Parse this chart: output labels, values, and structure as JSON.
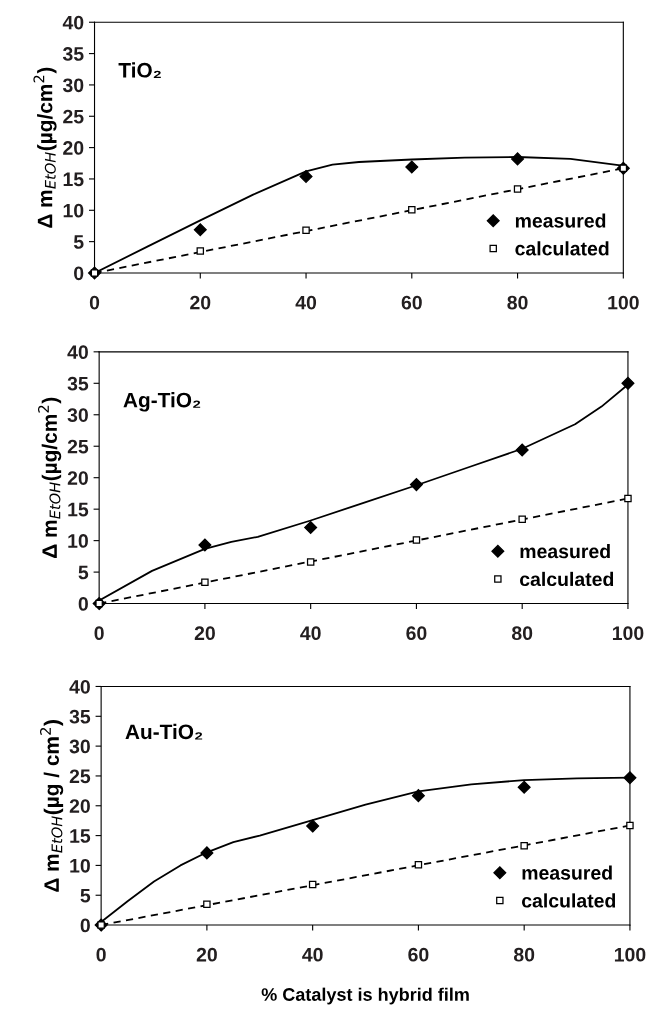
{
  "chart_data": [
    {
      "type": "scatter",
      "annotations": [
        "TiO₂"
      ],
      "ylabel": "Δ m$_{EtOH}$(µg/cm$^{2}$)",
      "xlim": [
        0,
        100
      ],
      "xticks": [
        0,
        20,
        40,
        60,
        80,
        100
      ],
      "ylim": [
        0,
        40
      ],
      "yticks": [
        0,
        5,
        10,
        15,
        20,
        25,
        30,
        35,
        40
      ],
      "grid": false,
      "legend": "bottom right",
      "x": [
        0,
        20,
        40,
        60,
        80,
        100
      ],
      "series": [
        {
          "name": "measured",
          "color": "#000000",
          "marker": "diamond",
          "values": [
            0,
            6.9,
            15.4,
            16.9,
            18.2,
            16.7
          ]
        },
        {
          "name": "calculated",
          "color": "#000000",
          "marker": "square",
          "values": [
            0,
            3.5,
            6.8,
            10.1,
            13.4,
            16.7
          ]
        },
        {
          "type": "line",
          "color": "#000000",
          "line_style": "solid",
          "x": [
            0,
            10,
            20,
            30,
            40,
            45,
            50,
            60,
            70,
            80,
            90,
            100
          ],
          "values": [
            0,
            4.2,
            8.4,
            12.5,
            16.2,
            17.3,
            17.7,
            18.1,
            18.4,
            18.5,
            18.2,
            17.1
          ]
        },
        {
          "type": "line",
          "color": "#000000",
          "line_style": "dashed",
          "x": [
            0,
            100
          ],
          "values": [
            0,
            16.7
          ]
        }
      ]
    },
    {
      "type": "scatter",
      "annotations": [
        "Ag-TiO₂"
      ],
      "ylabel": "Δ m$_{EtOH}$(µg/cm$^{2}$)",
      "xlim": [
        0,
        100
      ],
      "xticks": [
        0,
        20,
        40,
        60,
        80,
        100
      ],
      "ylim": [
        0,
        40
      ],
      "yticks": [
        0,
        5,
        10,
        15,
        20,
        25,
        30,
        35,
        40
      ],
      "grid": false,
      "legend": "bottom right",
      "x": [
        0,
        20,
        40,
        60,
        80,
        100
      ],
      "series": [
        {
          "name": "measured",
          "color": "#000000",
          "marker": "diamond",
          "values": [
            0,
            9.3,
            12.1,
            18.9,
            24.4,
            35
          ]
        },
        {
          "name": "calculated",
          "color": "#000000",
          "marker": "square",
          "values": [
            0,
            3.4,
            6.6,
            10.1,
            13.4,
            16.7
          ]
        },
        {
          "type": "line",
          "color": "#000000",
          "line_style": "solid",
          "x": [
            0,
            10,
            20,
            25,
            30,
            40,
            50,
            60,
            70,
            80,
            90,
            95,
            100
          ],
          "values": [
            0.5,
            5.2,
            8.7,
            9.8,
            10.6,
            13.2,
            16,
            18.8,
            21.7,
            24.6,
            28.5,
            31.3,
            34.8
          ]
        },
        {
          "type": "line",
          "color": "#000000",
          "line_style": "dashed",
          "x": [
            0,
            100
          ],
          "values": [
            0,
            16.7
          ]
        }
      ]
    },
    {
      "type": "scatter",
      "annotations": [
        "Au-TiO₂"
      ],
      "xlabel": "% Catalyst is hybrid film",
      "ylabel": "Δ m$_{EtOH}$(µg / cm$^{2}$)",
      "xlim": [
        0,
        100
      ],
      "xticks": [
        0,
        20,
        40,
        60,
        80,
        100
      ],
      "ylim": [
        0,
        40
      ],
      "yticks": [
        0,
        5,
        10,
        15,
        20,
        25,
        30,
        35,
        40
      ],
      "grid": false,
      "legend": "bottom right",
      "x": [
        0,
        20,
        40,
        60,
        80,
        100
      ],
      "series": [
        {
          "name": "measured",
          "color": "#000000",
          "marker": "diamond",
          "values": [
            0,
            12.1,
            16.6,
            21.7,
            23.1,
            24.7
          ]
        },
        {
          "name": "calculated",
          "color": "#000000",
          "marker": "square",
          "values": [
            0,
            3.5,
            6.8,
            10.1,
            13.3,
            16.7
          ]
        },
        {
          "type": "line",
          "color": "#000000",
          "line_style": "solid",
          "x": [
            0,
            5,
            10,
            15,
            20,
            25,
            30,
            40,
            50,
            60,
            70,
            80,
            90,
            100
          ],
          "values": [
            0.5,
            4,
            7.3,
            10,
            12.2,
            13.9,
            15,
            17.6,
            20.2,
            22.4,
            23.6,
            24.3,
            24.6,
            24.7
          ]
        },
        {
          "type": "line",
          "color": "#000000",
          "line_style": "dashed",
          "x": [
            0,
            100
          ],
          "values": [
            0,
            16.7
          ]
        }
      ]
    }
  ]
}
